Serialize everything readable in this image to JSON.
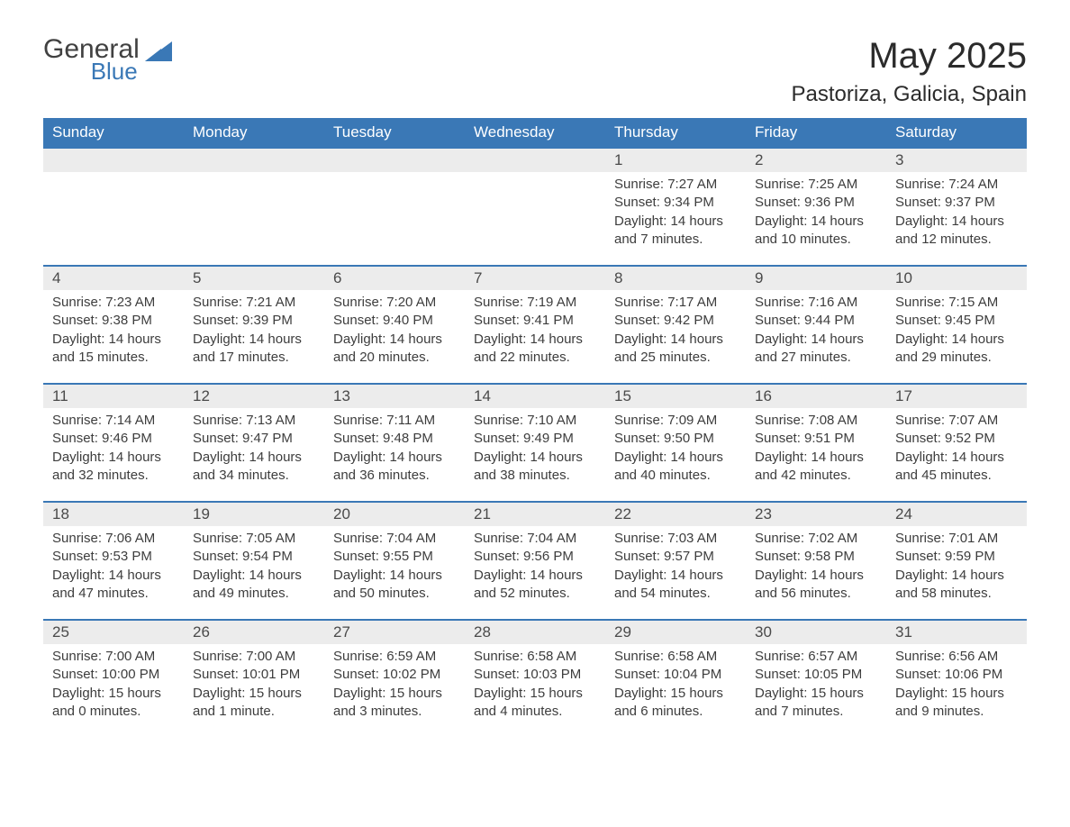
{
  "logo": {
    "general": "General",
    "blue": "Blue",
    "triangle_color": "#3a78b6"
  },
  "header": {
    "month_title": "May 2025",
    "location": "Pastoriza, Galicia, Spain"
  },
  "colors": {
    "header_bg": "#3a78b6",
    "header_text": "#ffffff",
    "daynum_bg": "#ececec",
    "row_border": "#3a78b6",
    "body_text": "#3d3d3d"
  },
  "weekdays": [
    "Sunday",
    "Monday",
    "Tuesday",
    "Wednesday",
    "Thursday",
    "Friday",
    "Saturday"
  ],
  "weeks": [
    [
      null,
      null,
      null,
      null,
      {
        "num": "1",
        "sunrise": "Sunrise: 7:27 AM",
        "sunset": "Sunset: 9:34 PM",
        "daylight": "Daylight: 14 hours and 7 minutes."
      },
      {
        "num": "2",
        "sunrise": "Sunrise: 7:25 AM",
        "sunset": "Sunset: 9:36 PM",
        "daylight": "Daylight: 14 hours and 10 minutes."
      },
      {
        "num": "3",
        "sunrise": "Sunrise: 7:24 AM",
        "sunset": "Sunset: 9:37 PM",
        "daylight": "Daylight: 14 hours and 12 minutes."
      }
    ],
    [
      {
        "num": "4",
        "sunrise": "Sunrise: 7:23 AM",
        "sunset": "Sunset: 9:38 PM",
        "daylight": "Daylight: 14 hours and 15 minutes."
      },
      {
        "num": "5",
        "sunrise": "Sunrise: 7:21 AM",
        "sunset": "Sunset: 9:39 PM",
        "daylight": "Daylight: 14 hours and 17 minutes."
      },
      {
        "num": "6",
        "sunrise": "Sunrise: 7:20 AM",
        "sunset": "Sunset: 9:40 PM",
        "daylight": "Daylight: 14 hours and 20 minutes."
      },
      {
        "num": "7",
        "sunrise": "Sunrise: 7:19 AM",
        "sunset": "Sunset: 9:41 PM",
        "daylight": "Daylight: 14 hours and 22 minutes."
      },
      {
        "num": "8",
        "sunrise": "Sunrise: 7:17 AM",
        "sunset": "Sunset: 9:42 PM",
        "daylight": "Daylight: 14 hours and 25 minutes."
      },
      {
        "num": "9",
        "sunrise": "Sunrise: 7:16 AM",
        "sunset": "Sunset: 9:44 PM",
        "daylight": "Daylight: 14 hours and 27 minutes."
      },
      {
        "num": "10",
        "sunrise": "Sunrise: 7:15 AM",
        "sunset": "Sunset: 9:45 PM",
        "daylight": "Daylight: 14 hours and 29 minutes."
      }
    ],
    [
      {
        "num": "11",
        "sunrise": "Sunrise: 7:14 AM",
        "sunset": "Sunset: 9:46 PM",
        "daylight": "Daylight: 14 hours and 32 minutes."
      },
      {
        "num": "12",
        "sunrise": "Sunrise: 7:13 AM",
        "sunset": "Sunset: 9:47 PM",
        "daylight": "Daylight: 14 hours and 34 minutes."
      },
      {
        "num": "13",
        "sunrise": "Sunrise: 7:11 AM",
        "sunset": "Sunset: 9:48 PM",
        "daylight": "Daylight: 14 hours and 36 minutes."
      },
      {
        "num": "14",
        "sunrise": "Sunrise: 7:10 AM",
        "sunset": "Sunset: 9:49 PM",
        "daylight": "Daylight: 14 hours and 38 minutes."
      },
      {
        "num": "15",
        "sunrise": "Sunrise: 7:09 AM",
        "sunset": "Sunset: 9:50 PM",
        "daylight": "Daylight: 14 hours and 40 minutes."
      },
      {
        "num": "16",
        "sunrise": "Sunrise: 7:08 AM",
        "sunset": "Sunset: 9:51 PM",
        "daylight": "Daylight: 14 hours and 42 minutes."
      },
      {
        "num": "17",
        "sunrise": "Sunrise: 7:07 AM",
        "sunset": "Sunset: 9:52 PM",
        "daylight": "Daylight: 14 hours and 45 minutes."
      }
    ],
    [
      {
        "num": "18",
        "sunrise": "Sunrise: 7:06 AM",
        "sunset": "Sunset: 9:53 PM",
        "daylight": "Daylight: 14 hours and 47 minutes."
      },
      {
        "num": "19",
        "sunrise": "Sunrise: 7:05 AM",
        "sunset": "Sunset: 9:54 PM",
        "daylight": "Daylight: 14 hours and 49 minutes."
      },
      {
        "num": "20",
        "sunrise": "Sunrise: 7:04 AM",
        "sunset": "Sunset: 9:55 PM",
        "daylight": "Daylight: 14 hours and 50 minutes."
      },
      {
        "num": "21",
        "sunrise": "Sunrise: 7:04 AM",
        "sunset": "Sunset: 9:56 PM",
        "daylight": "Daylight: 14 hours and 52 minutes."
      },
      {
        "num": "22",
        "sunrise": "Sunrise: 7:03 AM",
        "sunset": "Sunset: 9:57 PM",
        "daylight": "Daylight: 14 hours and 54 minutes."
      },
      {
        "num": "23",
        "sunrise": "Sunrise: 7:02 AM",
        "sunset": "Sunset: 9:58 PM",
        "daylight": "Daylight: 14 hours and 56 minutes."
      },
      {
        "num": "24",
        "sunrise": "Sunrise: 7:01 AM",
        "sunset": "Sunset: 9:59 PM",
        "daylight": "Daylight: 14 hours and 58 minutes."
      }
    ],
    [
      {
        "num": "25",
        "sunrise": "Sunrise: 7:00 AM",
        "sunset": "Sunset: 10:00 PM",
        "daylight": "Daylight: 15 hours and 0 minutes."
      },
      {
        "num": "26",
        "sunrise": "Sunrise: 7:00 AM",
        "sunset": "Sunset: 10:01 PM",
        "daylight": "Daylight: 15 hours and 1 minute."
      },
      {
        "num": "27",
        "sunrise": "Sunrise: 6:59 AM",
        "sunset": "Sunset: 10:02 PM",
        "daylight": "Daylight: 15 hours and 3 minutes."
      },
      {
        "num": "28",
        "sunrise": "Sunrise: 6:58 AM",
        "sunset": "Sunset: 10:03 PM",
        "daylight": "Daylight: 15 hours and 4 minutes."
      },
      {
        "num": "29",
        "sunrise": "Sunrise: 6:58 AM",
        "sunset": "Sunset: 10:04 PM",
        "daylight": "Daylight: 15 hours and 6 minutes."
      },
      {
        "num": "30",
        "sunrise": "Sunrise: 6:57 AM",
        "sunset": "Sunset: 10:05 PM",
        "daylight": "Daylight: 15 hours and 7 minutes."
      },
      {
        "num": "31",
        "sunrise": "Sunrise: 6:56 AM",
        "sunset": "Sunset: 10:06 PM",
        "daylight": "Daylight: 15 hours and 9 minutes."
      }
    ]
  ]
}
